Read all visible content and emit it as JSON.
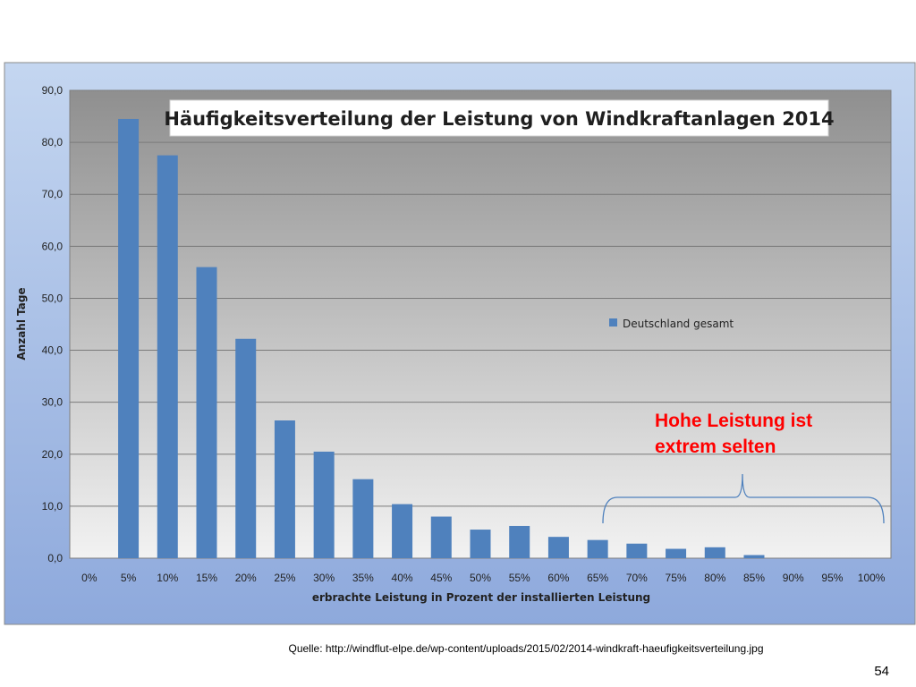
{
  "colors": {
    "bar": "#4f81bd",
    "annotation": "#ff0000",
    "bracket": "#4f81bd",
    "plot_gradient_top": "#8f8f8f",
    "plot_gradient_bottom": "#f2f2f2",
    "frame_gradient_top": "#c4d6f0",
    "frame_gradient_bottom": "#8ea9dc"
  },
  "chart_data": {
    "type": "bar",
    "title": "Häufigkeitsverteilung der Leistung von Windkraftanlagen 2014",
    "xlabel": "erbrachte Leistung in Prozent der installierten Leistung",
    "ylabel": "Anzahl Tage",
    "ylim": [
      0,
      90
    ],
    "yticks": [
      "0,0",
      "10,0",
      "20,0",
      "30,0",
      "40,0",
      "50,0",
      "60,0",
      "70,0",
      "80,0",
      "90,0"
    ],
    "grid": true,
    "legend_position": "right",
    "categories": [
      "0%",
      "5%",
      "10%",
      "15%",
      "20%",
      "25%",
      "30%",
      "35%",
      "40%",
      "45%",
      "50%",
      "55%",
      "60%",
      "65%",
      "70%",
      "75%",
      "80%",
      "85%",
      "90%",
      "95%",
      "100%"
    ],
    "series": [
      {
        "name": "Deutschland gesamt",
        "values": [
          0,
          84.5,
          77.5,
          56,
          42.2,
          26.5,
          20.5,
          15.2,
          10.4,
          8,
          5.5,
          6.2,
          4.1,
          3.5,
          2.8,
          1.8,
          2.1,
          0.6,
          0,
          0,
          0
        ]
      }
    ]
  },
  "annotation": {
    "line1": "Hohe Leistung ist",
    "line2": "extrem selten"
  },
  "source": "Quelle: http://windflut-elpe.de/wp-content/uploads/2015/02/2014-windkraft-haeufigkeitsverteilung.jpg",
  "page_number": "54"
}
